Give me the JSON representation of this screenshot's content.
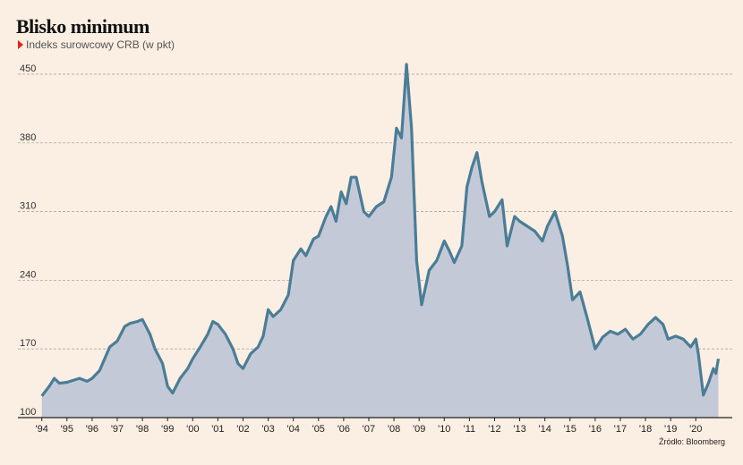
{
  "chart_data": {
    "type": "area",
    "title": "Blisko minimum",
    "subtitle": "Indeks surowcowy CRB (w pkt)",
    "source": "Źródło: Bloomberg",
    "color": "#4a7d96",
    "fill_color": "#c4c9d8",
    "grid": true,
    "xlim": [
      1993.05,
      2021.45
    ],
    "ylim": [
      100,
      470
    ],
    "yticks": [
      100,
      170,
      240,
      310,
      380,
      450
    ],
    "xticks": [
      {
        "value": 1994,
        "label": "'94"
      },
      {
        "value": 1995,
        "label": "'95"
      },
      {
        "value": 1996,
        "label": "'96"
      },
      {
        "value": 1997,
        "label": "'97"
      },
      {
        "value": 1998,
        "label": "'98"
      },
      {
        "value": 1999,
        "label": "'99"
      },
      {
        "value": 2000,
        "label": "'00"
      },
      {
        "value": 2001,
        "label": "'01"
      },
      {
        "value": 2002,
        "label": "'02"
      },
      {
        "value": 2003,
        "label": "'03"
      },
      {
        "value": 2004,
        "label": "'04"
      },
      {
        "value": 2005,
        "label": "'05"
      },
      {
        "value": 2006,
        "label": "'06"
      },
      {
        "value": 2007,
        "label": "'07"
      },
      {
        "value": 2008,
        "label": "'08"
      },
      {
        "value": 2009,
        "label": "'09"
      },
      {
        "value": 2010,
        "label": "'10"
      },
      {
        "value": 2011,
        "label": "'11"
      },
      {
        "value": 2012,
        "label": "'12"
      },
      {
        "value": 2013,
        "label": "'13"
      },
      {
        "value": 2014,
        "label": "'14"
      },
      {
        "value": 2015,
        "label": "'15"
      },
      {
        "value": 2016,
        "label": "'16"
      },
      {
        "value": 2017,
        "label": "'17"
      },
      {
        "value": 2018,
        "label": "'18"
      },
      {
        "value": 2019,
        "label": "'19"
      },
      {
        "value": 2020,
        "label": "'20"
      }
    ],
    "x": [
      1994.0,
      1994.3,
      1994.5,
      1994.7,
      1995.0,
      1995.5,
      1995.8,
      1996.0,
      1996.3,
      1996.5,
      1996.7,
      1997.0,
      1997.3,
      1997.5,
      1997.8,
      1998.0,
      1998.3,
      1998.5,
      1998.8,
      1999.0,
      1999.2,
      1999.5,
      1999.8,
      2000.0,
      2000.3,
      2000.6,
      2000.8,
      2001.0,
      2001.3,
      2001.6,
      2001.8,
      2002.0,
      2002.3,
      2002.6,
      2002.8,
      2003.0,
      2003.2,
      2003.5,
      2003.8,
      2004.0,
      2004.3,
      2004.5,
      2004.8,
      2005.0,
      2005.3,
      2005.5,
      2005.7,
      2005.9,
      2006.1,
      2006.3,
      2006.5,
      2006.8,
      2007.0,
      2007.3,
      2007.6,
      2007.9,
      2008.1,
      2008.3,
      2008.5,
      2008.7,
      2008.9,
      2009.1,
      2009.4,
      2009.7,
      2010.0,
      2010.2,
      2010.4,
      2010.7,
      2010.9,
      2011.1,
      2011.3,
      2011.5,
      2011.8,
      2012.0,
      2012.3,
      2012.5,
      2012.8,
      2013.0,
      2013.3,
      2013.6,
      2013.9,
      2014.1,
      2014.4,
      2014.7,
      2014.9,
      2015.1,
      2015.4,
      2015.7,
      2016.0,
      2016.3,
      2016.6,
      2016.9,
      2017.2,
      2017.5,
      2017.8,
      2018.1,
      2018.4,
      2018.7,
      2018.9,
      2019.2,
      2019.5,
      2019.8,
      2020.0,
      2020.1,
      2020.3,
      2020.5,
      2020.7,
      2020.8,
      2020.9
    ],
    "values": [
      122,
      132,
      140,
      135,
      136,
      140,
      137,
      140,
      148,
      160,
      172,
      178,
      193,
      196,
      198,
      200,
      185,
      170,
      155,
      132,
      125,
      140,
      150,
      160,
      172,
      185,
      198,
      195,
      185,
      170,
      155,
      150,
      165,
      172,
      183,
      210,
      203,
      210,
      225,
      260,
      272,
      265,
      282,
      285,
      305,
      315,
      300,
      330,
      318,
      345,
      345,
      310,
      305,
      315,
      320,
      345,
      395,
      385,
      460,
      395,
      260,
      215,
      250,
      260,
      280,
      270,
      258,
      275,
      335,
      355,
      370,
      340,
      305,
      310,
      322,
      275,
      305,
      300,
      295,
      290,
      280,
      295,
      310,
      285,
      255,
      220,
      228,
      200,
      170,
      182,
      188,
      185,
      190,
      180,
      185,
      195,
      202,
      195,
      180,
      183,
      180,
      172,
      180,
      165,
      123,
      135,
      150,
      145,
      160
    ]
  }
}
